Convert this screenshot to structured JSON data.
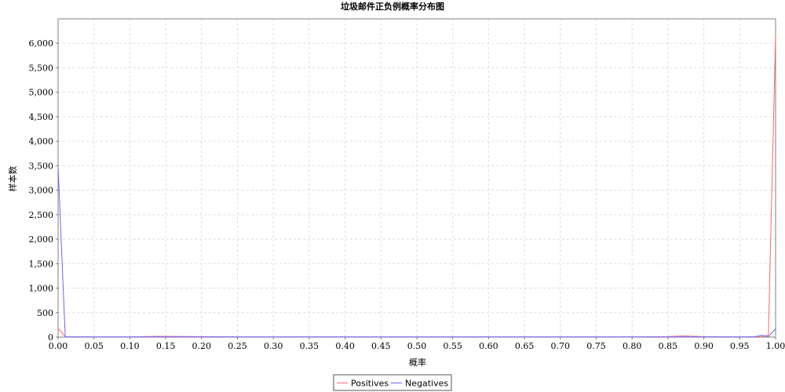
{
  "chart_data": {
    "type": "line",
    "title": "垃圾邮件正负例概率分布图",
    "xlabel": "概率",
    "ylabel": "样本数",
    "xlim": [
      0,
      1
    ],
    "ylim": [
      0,
      6500
    ],
    "x_ticks": [
      "0.00",
      "0.05",
      "0.10",
      "0.15",
      "0.20",
      "0.25",
      "0.30",
      "0.35",
      "0.40",
      "0.45",
      "0.50",
      "0.55",
      "0.60",
      "0.65",
      "0.70",
      "0.75",
      "0.80",
      "0.85",
      "0.90",
      "0.95",
      "1.00"
    ],
    "y_ticks": [
      "0",
      "500",
      "1,000",
      "1,500",
      "2,000",
      "2,500",
      "3,000",
      "3,500",
      "4,000",
      "4,500",
      "5,000",
      "5,500",
      "6,000"
    ],
    "grid": true,
    "legend_position": "bottom",
    "series": [
      {
        "name": "Positives",
        "color": "#ff6666",
        "points": [
          [
            0.0,
            180
          ],
          [
            0.01,
            8
          ],
          [
            0.05,
            5
          ],
          [
            0.1,
            5
          ],
          [
            0.14,
            15
          ],
          [
            0.2,
            10
          ],
          [
            0.25,
            5
          ],
          [
            0.3,
            5
          ],
          [
            0.4,
            5
          ],
          [
            0.5,
            5
          ],
          [
            0.6,
            5
          ],
          [
            0.7,
            5
          ],
          [
            0.8,
            5
          ],
          [
            0.85,
            10
          ],
          [
            0.87,
            25
          ],
          [
            0.9,
            10
          ],
          [
            0.95,
            5
          ],
          [
            0.98,
            10
          ],
          [
            0.99,
            40
          ],
          [
            1.0,
            6180
          ]
        ]
      },
      {
        "name": "Negatives",
        "color": "#6666ff",
        "points": [
          [
            0.0,
            3480
          ],
          [
            0.01,
            5
          ],
          [
            0.05,
            3
          ],
          [
            0.1,
            3
          ],
          [
            0.2,
            3
          ],
          [
            0.3,
            3
          ],
          [
            0.4,
            3
          ],
          [
            0.5,
            3
          ],
          [
            0.6,
            3
          ],
          [
            0.7,
            3
          ],
          [
            0.8,
            3
          ],
          [
            0.9,
            3
          ],
          [
            0.95,
            3
          ],
          [
            0.97,
            5
          ],
          [
            0.98,
            40
          ],
          [
            0.99,
            10
          ],
          [
            1.0,
            170
          ]
        ]
      }
    ]
  }
}
